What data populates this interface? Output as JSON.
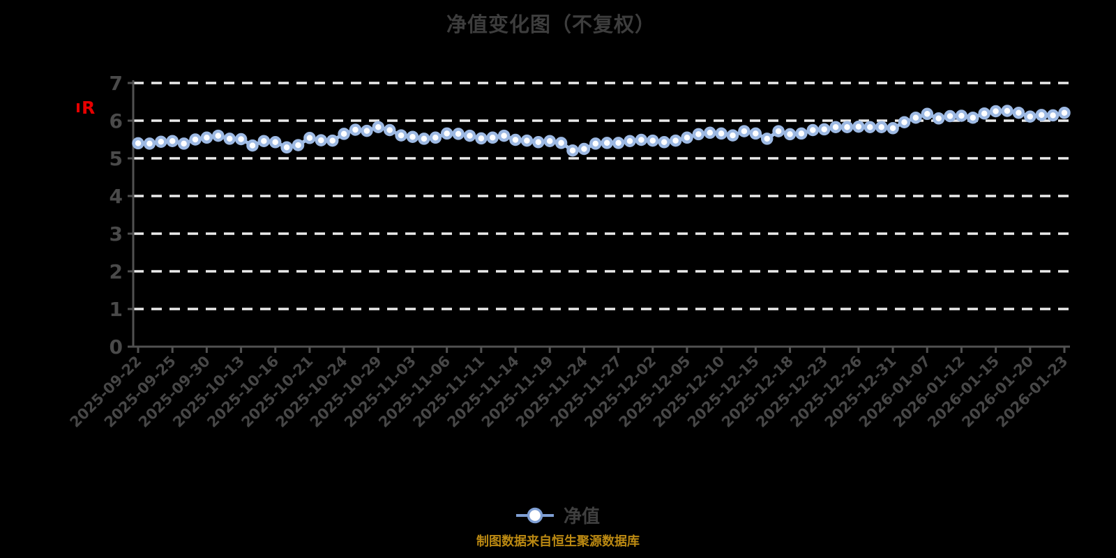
{
  "chart_data": {
    "type": "line",
    "title": "净值变化图（不复权）",
    "y_axis": {
      "unit_label": "R",
      "ticks": [
        0,
        1,
        2,
        3,
        4,
        5,
        6,
        7
      ],
      "min": 0,
      "max": 7,
      "grid": "horizontal-dashed-white"
    },
    "x_axis": {
      "tick_labels": [
        "2025-09-22",
        "2025-09-25",
        "2025-09-30",
        "2025-10-13",
        "2025-10-16",
        "2025-10-21",
        "2025-10-24",
        "2025-10-29",
        "2025-11-03",
        "2025-11-06",
        "2025-11-11",
        "2025-11-14",
        "2025-11-19",
        "2025-11-24",
        "2025-11-27",
        "2025-12-02",
        "2025-12-05",
        "2025-12-10",
        "2025-12-15",
        "2025-12-18",
        "2025-12-23",
        "2025-12-26",
        "2025-12-31",
        "2026-01-07",
        "2026-01-12",
        "2026-01-15",
        "2026-01-20",
        "2026-01-23"
      ],
      "points_per_tick": 3,
      "label_rotation_deg": 45
    },
    "series": [
      {
        "name": "净值",
        "values": [
          5.4,
          5.39,
          5.44,
          5.46,
          5.39,
          5.5,
          5.55,
          5.6,
          5.52,
          5.51,
          5.34,
          5.46,
          5.43,
          5.29,
          5.35,
          5.54,
          5.48,
          5.47,
          5.65,
          5.76,
          5.73,
          5.83,
          5.75,
          5.61,
          5.57,
          5.52,
          5.55,
          5.66,
          5.65,
          5.6,
          5.53,
          5.55,
          5.6,
          5.49,
          5.47,
          5.43,
          5.46,
          5.41,
          5.21,
          5.25,
          5.39,
          5.41,
          5.41,
          5.46,
          5.49,
          5.47,
          5.43,
          5.47,
          5.55,
          5.64,
          5.68,
          5.66,
          5.61,
          5.72,
          5.66,
          5.52,
          5.72,
          5.64,
          5.66,
          5.75,
          5.77,
          5.83,
          5.83,
          5.84,
          5.83,
          5.83,
          5.8,
          5.96,
          6.08,
          6.18,
          6.06,
          6.12,
          6.13,
          6.08,
          6.19,
          6.25,
          6.26,
          6.21,
          6.11,
          6.15,
          6.14,
          6.21
        ]
      }
    ],
    "legend": {
      "label": "净值",
      "position": "bottom"
    },
    "footer_note": "制图数据来自恒生聚源数据库"
  },
  "colors": {
    "background": "#000000",
    "title_text": "#3d3d3d",
    "axis": "#515151",
    "axis_labels": "#4a4a4a",
    "gridline": "#eaeaea",
    "line": "#a9c5ec",
    "marker_ring": "#9db9e3",
    "marker_fill": "#ffffff",
    "legend_marker": "#7f9fd4",
    "unit_label_red": "#e60000",
    "footer_orange": "#bb8912"
  }
}
